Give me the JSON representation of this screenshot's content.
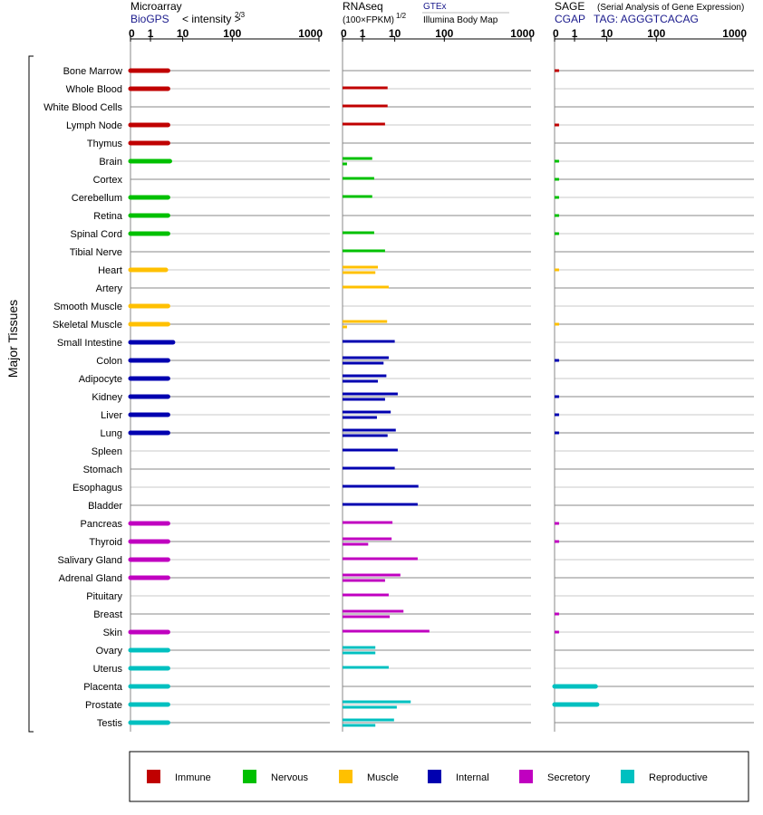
{
  "panels": [
    {
      "key": "microarray",
      "title": "Microarray",
      "subtitle": "< intensity >",
      "exponent": "2/3",
      "source_links": [
        "BioGPS"
      ],
      "ticks": [
        "0",
        "1",
        "10",
        "100",
        "1000"
      ]
    },
    {
      "key": "rnaseq",
      "title": "RNAseq",
      "subtitle": "(100×FPKM)",
      "exponent": "1/2",
      "source_links": [
        "GTEx",
        "Illumina Body Map"
      ],
      "ticks": [
        "0",
        "1",
        "10",
        "100",
        "1000"
      ]
    },
    {
      "key": "sage",
      "title": "SAGE",
      "subtitle": "(Serial Analysis of Gene Expression)",
      "exponent": "",
      "source_links": [
        "CGAP",
        "TAG: AGGGTCACAG"
      ],
      "ticks": [
        "0",
        "1",
        "10",
        "100",
        "1000"
      ]
    }
  ],
  "group_label": "Major Tissues",
  "legend": [
    {
      "name": "Immune",
      "color": "#c00000"
    },
    {
      "name": "Nervous",
      "color": "#00c000"
    },
    {
      "name": "Muscle",
      "color": "#ffc000"
    },
    {
      "name": "Internal",
      "color": "#0000b0"
    },
    {
      "name": "Secretory",
      "color": "#c000c0"
    },
    {
      "name": "Reproductive",
      "color": "#00c0c0"
    }
  ],
  "chart_data": {
    "type": "bar",
    "x_scale": "power-transformed (0, 1, 10, 100, 1000 ticks)",
    "xlim": [
      0,
      1000
    ],
    "tissues": [
      {
        "name": "Bone Marrow",
        "group": "Immune",
        "microarray": 3.5,
        "rnaseq": [],
        "sage": [
          0.05
        ]
      },
      {
        "name": "Whole Blood",
        "group": "Immune",
        "microarray": 3.5,
        "rnaseq": [
          6
        ],
        "sage": []
      },
      {
        "name": "White Blood Cells",
        "group": "Immune",
        "microarray": null,
        "rnaseq": [
          6
        ],
        "sage": []
      },
      {
        "name": "Lymph Node",
        "group": "Immune",
        "microarray": 3.5,
        "rnaseq": [
          5
        ],
        "sage": [
          0.05
        ]
      },
      {
        "name": "Thymus",
        "group": "Immune",
        "microarray": 3.5,
        "rnaseq": [],
        "sage": []
      },
      {
        "name": "Brain",
        "group": "Nervous",
        "microarray": 4,
        "rnaseq": [
          2,
          0.05
        ],
        "sage": [
          0.05
        ]
      },
      {
        "name": "Cortex",
        "group": "Nervous",
        "microarray": null,
        "rnaseq": [
          2.3
        ],
        "sage": [
          0.05
        ]
      },
      {
        "name": "Cerebellum",
        "group": "Nervous",
        "microarray": 3.5,
        "rnaseq": [
          2
        ],
        "sage": [
          0.05
        ]
      },
      {
        "name": "Retina",
        "group": "Nervous",
        "microarray": 3.5,
        "rnaseq": [],
        "sage": [
          0.05
        ]
      },
      {
        "name": "Spinal Cord",
        "group": "Nervous",
        "microarray": 3.5,
        "rnaseq": [
          2.3
        ],
        "sage": [
          0.05
        ]
      },
      {
        "name": "Tibial Nerve",
        "group": "Nervous",
        "microarray": null,
        "rnaseq": [
          5
        ],
        "sage": []
      },
      {
        "name": "Heart",
        "group": "Muscle",
        "microarray": 3,
        "rnaseq": [
          3,
          2.5
        ],
        "sage": [
          0.05
        ]
      },
      {
        "name": "Artery",
        "group": "Muscle",
        "microarray": null,
        "rnaseq": [
          6.5
        ],
        "sage": []
      },
      {
        "name": "Smooth Muscle",
        "group": "Muscle",
        "microarray": 3.5,
        "rnaseq": [],
        "sage": []
      },
      {
        "name": "Skeletal Muscle",
        "group": "Muscle",
        "microarray": 3.5,
        "rnaseq": [
          5.8,
          0.05
        ],
        "sage": [
          0.05
        ]
      },
      {
        "name": "Small Intestine",
        "group": "Internal",
        "microarray": 5,
        "rnaseq": [
          10
        ],
        "sage": []
      },
      {
        "name": "Colon",
        "group": "Internal",
        "microarray": 3.5,
        "rnaseq": [
          6.5,
          4.5
        ],
        "sage": [
          0.05
        ]
      },
      {
        "name": "Adipocyte",
        "group": "Internal",
        "microarray": 3.5,
        "rnaseq": [
          5.5,
          3
        ],
        "sage": []
      },
      {
        "name": "Kidney",
        "group": "Internal",
        "microarray": 3.5,
        "rnaseq": [
          11.5,
          5
        ],
        "sage": [
          0.05
        ]
      },
      {
        "name": "Liver",
        "group": "Internal",
        "microarray": 3.5,
        "rnaseq": [
          7.5,
          2.8
        ],
        "sage": [
          0.05
        ]
      },
      {
        "name": "Lung",
        "group": "Internal",
        "microarray": 3.5,
        "rnaseq": [
          10.5,
          6
        ],
        "sage": [
          0.05
        ]
      },
      {
        "name": "Spleen",
        "group": "Internal",
        "microarray": null,
        "rnaseq": [
          11.5
        ],
        "sage": []
      },
      {
        "name": "Stomach",
        "group": "Internal",
        "microarray": null,
        "rnaseq": [
          10
        ],
        "sage": []
      },
      {
        "name": "Esophagus",
        "group": "Internal",
        "microarray": null,
        "rnaseq": [
          30
        ],
        "sage": []
      },
      {
        "name": "Bladder",
        "group": "Internal",
        "microarray": null,
        "rnaseq": [
          29
        ],
        "sage": []
      },
      {
        "name": "Pancreas",
        "group": "Secretory",
        "microarray": 3.5,
        "rnaseq": [
          8.5
        ],
        "sage": [
          0.05
        ]
      },
      {
        "name": "Thyroid",
        "group": "Secretory",
        "microarray": 3.5,
        "rnaseq": [
          8,
          1.5
        ],
        "sage": [
          0.05
        ]
      },
      {
        "name": "Salivary Gland",
        "group": "Secretory",
        "microarray": 3.5,
        "rnaseq": [
          29
        ],
        "sage": []
      },
      {
        "name": "Adrenal Gland",
        "group": "Secretory",
        "microarray": 3.5,
        "rnaseq": [
          13,
          5
        ],
        "sage": []
      },
      {
        "name": "Pituitary",
        "group": "Secretory",
        "microarray": null,
        "rnaseq": [
          6.5
        ],
        "sage": []
      },
      {
        "name": "Breast",
        "group": "Secretory",
        "microarray": null,
        "rnaseq": [
          15,
          7
        ],
        "sage": [
          0.05
        ]
      },
      {
        "name": "Skin",
        "group": "Secretory",
        "microarray": 3.5,
        "rnaseq": [
          50
        ],
        "sage": [
          0.05
        ]
      },
      {
        "name": "Ovary",
        "group": "Reproductive",
        "microarray": 3.5,
        "rnaseq": [
          2.5,
          2.5
        ],
        "sage": []
      },
      {
        "name": "Uterus",
        "group": "Reproductive",
        "microarray": 3.5,
        "rnaseq": [
          6.5
        ],
        "sage": []
      },
      {
        "name": "Placenta",
        "group": "Reproductive",
        "microarray": 3.5,
        "rnaseq": [],
        "sage": [
          4.5
        ]
      },
      {
        "name": "Prostate",
        "group": "Reproductive",
        "microarray": 3.5,
        "rnaseq": [
          21,
          11
        ],
        "sage": [
          5
        ]
      },
      {
        "name": "Testis",
        "group": "Reproductive",
        "microarray": 3.5,
        "rnaseq": [
          9.5,
          2.5
        ],
        "sage": []
      }
    ]
  }
}
